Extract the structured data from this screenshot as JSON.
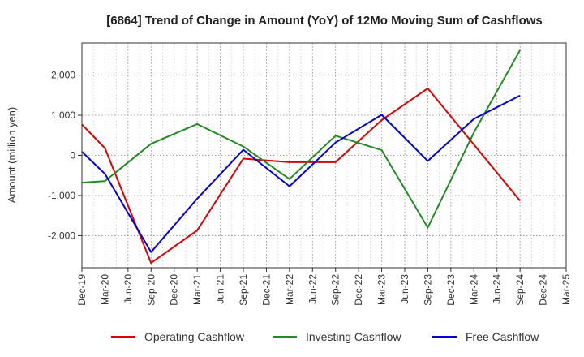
{
  "chart_data": {
    "type": "line",
    "title": "[6864]  Trend of Change in Amount (YoY) of 12Mo Moving Sum of Cashflows",
    "ylabel": "Amount (million yen)",
    "xlabel": "",
    "ylim": [
      -2800,
      2800
    ],
    "yticks": [
      -2000,
      -1000,
      0,
      1000,
      2000
    ],
    "ytick_labels": [
      "-2,000",
      "-1,000",
      "0",
      "1,000",
      "2,000"
    ],
    "categories": [
      "Dec-19",
      "Mar-20",
      "Jun-20",
      "Sep-20",
      "Dec-20",
      "Mar-21",
      "Jun-21",
      "Sep-21",
      "Dec-21",
      "Mar-22",
      "Jun-22",
      "Sep-22",
      "Dec-22",
      "Mar-23",
      "Jun-23",
      "Sep-23",
      "Dec-23",
      "Mar-24",
      "Jun-24",
      "Sep-24",
      "Dec-24",
      "Mar-25"
    ],
    "grid": true,
    "legend_position": "bottom",
    "series": [
      {
        "name": "Operating Cashflow",
        "color": "#dd0000",
        "values": [
          770,
          180,
          null,
          -2680,
          null,
          -1870,
          null,
          -80,
          null,
          -170,
          null,
          -170,
          null,
          880,
          null,
          1670,
          null,
          null,
          null,
          -1130,
          null,
          null
        ]
      },
      {
        "name": "Investing Cashflow",
        "color": "#228b22",
        "values": [
          -680,
          -640,
          null,
          290,
          null,
          780,
          null,
          220,
          null,
          -590,
          null,
          490,
          null,
          130,
          null,
          -1800,
          null,
          570,
          null,
          2620,
          null,
          null
        ]
      },
      {
        "name": "Free Cashflow",
        "color": "#0000dd",
        "values": [
          90,
          -460,
          null,
          -2410,
          null,
          -1080,
          null,
          140,
          null,
          -770,
          null,
          320,
          null,
          1010,
          null,
          -140,
          null,
          910,
          null,
          1490,
          null,
          null
        ]
      }
    ]
  }
}
